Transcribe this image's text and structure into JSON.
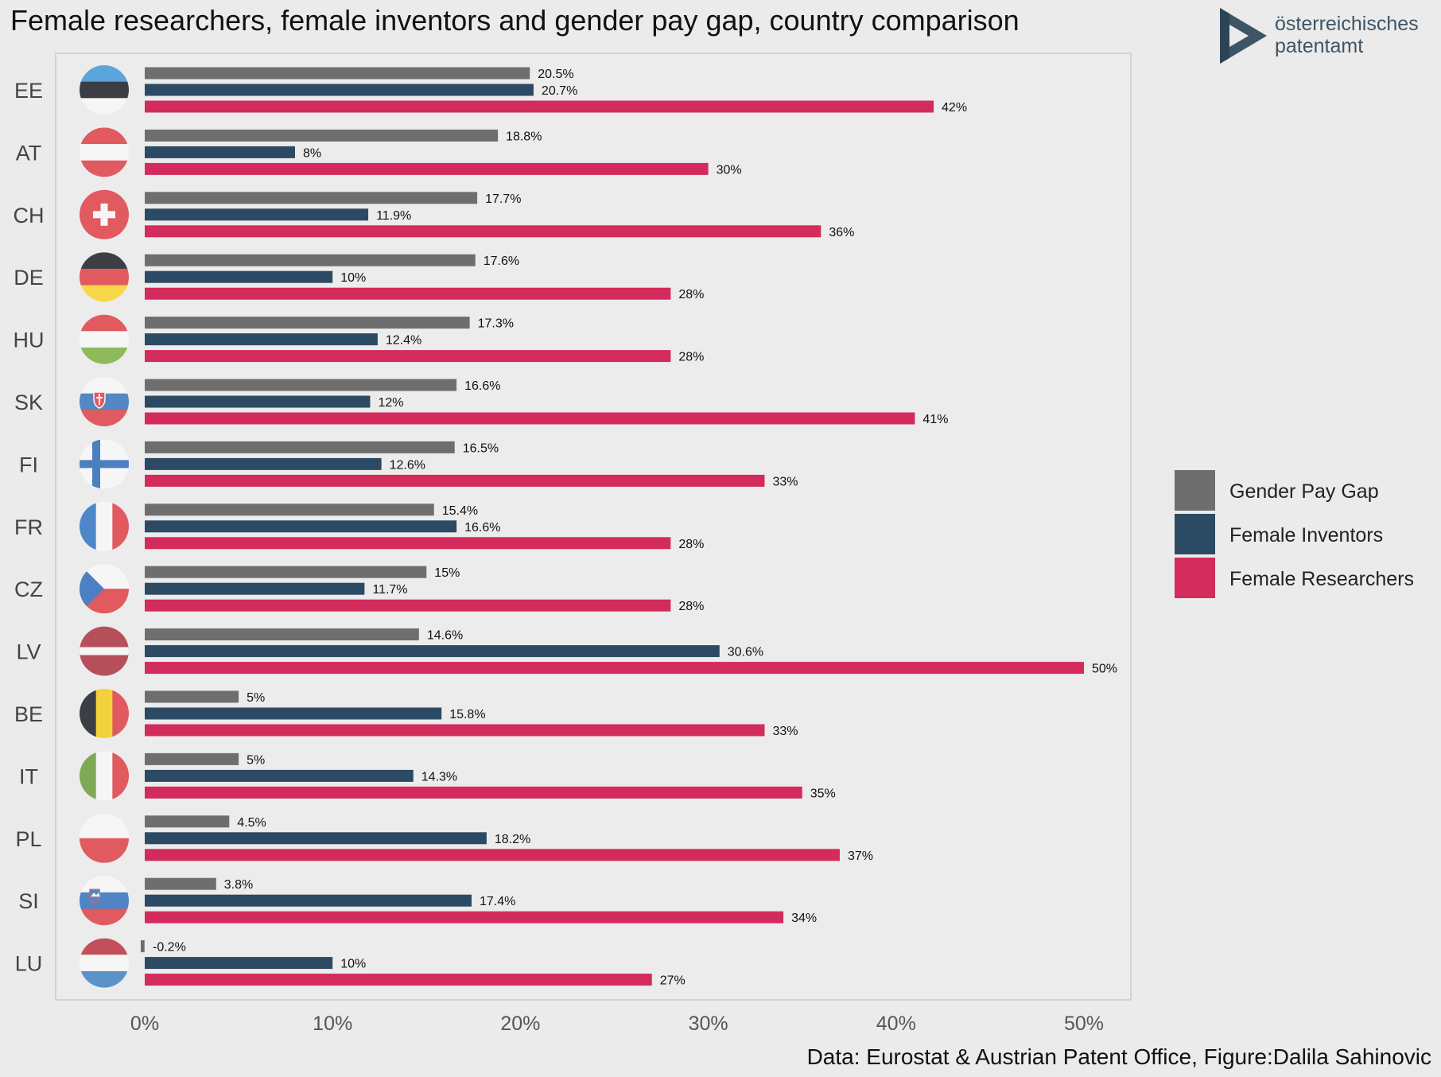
{
  "colors": {
    "gender_pay_gap": "#6e6e6e",
    "female_inventors": "#2c4a63",
    "female_researchers": "#d22b5c",
    "panel": "#ececec",
    "background": "#ebebeb"
  },
  "logo": {
    "line1": "österreichisches",
    "line2": "patentamt",
    "icon": "patent-office-triangle-icon"
  },
  "chart_data": {
    "type": "bar",
    "orientation": "horizontal",
    "title": "Female researchers, female inventors and gender pay gap, country comparison",
    "caption": "Data: Eurostat & Austrian Patent Office, Figure:Dalila Sahinovic",
    "xlabel": "",
    "ylabel": "",
    "xlim": [
      0,
      50
    ],
    "x_ticks": [
      "0%",
      "10%",
      "20%",
      "30%",
      "40%",
      "50%"
    ],
    "legend_position": "right",
    "grid": false,
    "categories": [
      "EE",
      "AT",
      "CH",
      "DE",
      "HU",
      "SK",
      "FI",
      "FR",
      "CZ",
      "LV",
      "BE",
      "IT",
      "PL",
      "SI",
      "LU"
    ],
    "series": [
      {
        "name": "Gender Pay Gap",
        "key": "gender_pay_gap",
        "values": [
          20.5,
          18.8,
          17.7,
          17.6,
          17.3,
          16.6,
          16.5,
          15.4,
          15,
          14.6,
          5,
          5,
          4.5,
          3.8,
          -0.2
        ],
        "labels": [
          "20.5%",
          "18.8%",
          "17.7%",
          "17.6%",
          "17.3%",
          "16.6%",
          "16.5%",
          "15.4%",
          "15%",
          "14.6%",
          "5%",
          "5%",
          "4.5%",
          "3.8%",
          "-0.2%"
        ]
      },
      {
        "name": "Female Inventors",
        "key": "female_inventors",
        "values": [
          20.7,
          8,
          11.9,
          10,
          12.4,
          12,
          12.6,
          16.6,
          11.7,
          30.6,
          15.8,
          14.3,
          18.2,
          17.4,
          10
        ],
        "labels": [
          "20.7%",
          "8%",
          "11.9%",
          "10%",
          "12.4%",
          "12%",
          "12.6%",
          "16.6%",
          "11.7%",
          "30.6%",
          "15.8%",
          "14.3%",
          "18.2%",
          "17.4%",
          "10%"
        ]
      },
      {
        "name": "Female Researchers",
        "key": "female_researchers",
        "values": [
          42,
          30,
          36,
          28,
          28,
          41,
          33,
          28,
          28,
          50,
          33,
          35,
          37,
          34,
          27
        ],
        "labels": [
          "42%",
          "30%",
          "36%",
          "28%",
          "28%",
          "41%",
          "33%",
          "28%",
          "28%",
          "50%",
          "33%",
          "35%",
          "37%",
          "34%",
          "27%"
        ]
      }
    ],
    "flags": [
      {
        "country": "EE",
        "icon": "estonia-flag-icon"
      },
      {
        "country": "AT",
        "icon": "austria-flag-icon"
      },
      {
        "country": "CH",
        "icon": "switzerland-flag-icon"
      },
      {
        "country": "DE",
        "icon": "germany-flag-icon"
      },
      {
        "country": "HU",
        "icon": "hungary-flag-icon"
      },
      {
        "country": "SK",
        "icon": "slovakia-flag-icon"
      },
      {
        "country": "FI",
        "icon": "finland-flag-icon"
      },
      {
        "country": "FR",
        "icon": "france-flag-icon"
      },
      {
        "country": "CZ",
        "icon": "czechia-flag-icon"
      },
      {
        "country": "LV",
        "icon": "latvia-flag-icon"
      },
      {
        "country": "BE",
        "icon": "belgium-flag-icon"
      },
      {
        "country": "IT",
        "icon": "italy-flag-icon"
      },
      {
        "country": "PL",
        "icon": "poland-flag-icon"
      },
      {
        "country": "SI",
        "icon": "slovenia-flag-icon"
      },
      {
        "country": "LU",
        "icon": "luxembourg-flag-icon"
      }
    ]
  }
}
